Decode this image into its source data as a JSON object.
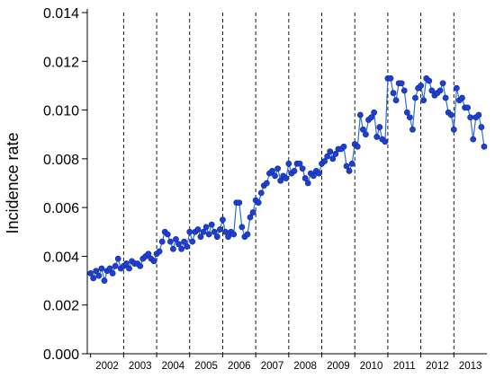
{
  "chart_data": {
    "type": "line",
    "title": "",
    "xlabel": "",
    "ylabel": "Incidence rate",
    "ylim": [
      0,
      0.014
    ],
    "yticks": [
      "0.000",
      "0.002",
      "0.004",
      "0.006",
      "0.008",
      "0.010",
      "0.012",
      "0.014"
    ],
    "years": [
      "2002",
      "2003",
      "2004",
      "2005",
      "2006",
      "2007",
      "2008",
      "2009",
      "2010",
      "2011",
      "2012",
      "2013"
    ],
    "year_dividers": "dashed vertical line at each year boundary",
    "grid": false,
    "legend": "none",
    "colors": {
      "line": "#2f6fd6",
      "marker": "#1f3fd0",
      "marker_edge": "#102a9a"
    },
    "series": [
      {
        "x": [
          2002.0,
          2002.083,
          2002.167,
          2002.25,
          2002.333,
          2002.417,
          2002.5,
          2002.583,
          2002.667,
          2002.75,
          2002.833,
          2002.917,
          2003.0,
          2003.083,
          2003.167,
          2003.25,
          2003.333,
          2003.417,
          2003.5,
          2003.583,
          2003.667,
          2003.75,
          2003.833,
          2003.917,
          2004.0,
          2004.083,
          2004.167,
          2004.25,
          2004.333,
          2004.417,
          2004.5,
          2004.583,
          2004.667,
          2004.75,
          2004.833,
          2004.917,
          2005.0,
          2005.083,
          2005.167,
          2005.25,
          2005.333,
          2005.417,
          2005.5,
          2005.583,
          2005.667,
          2005.75,
          2005.833,
          2005.917,
          2006.0,
          2006.083,
          2006.167,
          2006.25,
          2006.333,
          2006.417,
          2006.5,
          2006.583,
          2006.667,
          2006.75,
          2006.833,
          2006.917,
          2007.0,
          2007.083,
          2007.167,
          2007.25,
          2007.333,
          2007.417,
          2007.5,
          2007.583,
          2007.667,
          2007.75,
          2007.833,
          2007.917,
          2008.0,
          2008.083,
          2008.167,
          2008.25,
          2008.333,
          2008.417,
          2008.5,
          2008.583,
          2008.667,
          2008.75,
          2008.833,
          2008.917,
          2009.0,
          2009.083,
          2009.167,
          2009.25,
          2009.333,
          2009.417,
          2009.5,
          2009.583,
          2009.667,
          2009.75,
          2009.833,
          2009.917,
          2010.0,
          2010.083,
          2010.167,
          2010.25,
          2010.333,
          2010.417,
          2010.5,
          2010.583,
          2010.667,
          2010.75,
          2010.833,
          2010.917,
          2011.0,
          2011.083,
          2011.167,
          2011.25,
          2011.333,
          2011.417,
          2011.5,
          2011.583,
          2011.667,
          2011.75,
          2011.833,
          2011.917,
          2012.0,
          2012.083,
          2012.167,
          2012.25,
          2012.333,
          2012.417,
          2012.5,
          2012.583,
          2012.667,
          2012.75,
          2012.833,
          2012.917,
          2013.0,
          2013.083,
          2013.167,
          2013.25,
          2013.333,
          2013.417,
          2013.5,
          2013.583,
          2013.667,
          2013.75,
          2013.833,
          2013.917
        ],
        "values": [
          0.0033,
          0.0031,
          0.0034,
          0.0032,
          0.0035,
          0.003,
          0.0034,
          0.0035,
          0.0033,
          0.0036,
          0.0039,
          0.0035,
          0.0036,
          0.0037,
          0.0035,
          0.0038,
          0.0037,
          0.0037,
          0.0036,
          0.0039,
          0.004,
          0.0041,
          0.0039,
          0.0038,
          0.0041,
          0.0042,
          0.0046,
          0.005,
          0.0049,
          0.0046,
          0.0043,
          0.0047,
          0.0045,
          0.0043,
          0.0046,
          0.0044,
          0.005,
          0.0046,
          0.005,
          0.0051,
          0.0048,
          0.005,
          0.0052,
          0.0049,
          0.0053,
          0.005,
          0.0048,
          0.0051,
          0.0055,
          0.005,
          0.0048,
          0.005,
          0.0049,
          0.0062,
          0.0062,
          0.0052,
          0.0048,
          0.0049,
          0.0056,
          0.0058,
          0.0063,
          0.0062,
          0.0066,
          0.0069,
          0.007,
          0.0074,
          0.0075,
          0.0073,
          0.0076,
          0.0071,
          0.0073,
          0.0072,
          0.0078,
          0.0074,
          0.0075,
          0.0078,
          0.0078,
          0.0076,
          0.0072,
          0.007,
          0.0074,
          0.0073,
          0.0075,
          0.0074,
          0.0078,
          0.0079,
          0.0081,
          0.0083,
          0.008,
          0.0082,
          0.0084,
          0.0084,
          0.0085,
          0.0077,
          0.0075,
          0.0078,
          0.0086,
          0.0085,
          0.0098,
          0.0092,
          0.009,
          0.0096,
          0.0097,
          0.0099,
          0.0089,
          0.0093,
          0.0088,
          0.0087,
          0.0113,
          0.0113,
          0.0107,
          0.0104,
          0.0111,
          0.0111,
          0.0108,
          0.0099,
          0.0097,
          0.0092,
          0.0105,
          0.0109,
          0.011,
          0.0104,
          0.0113,
          0.0112,
          0.0108,
          0.0106,
          0.0107,
          0.0108,
          0.0111,
          0.0105,
          0.0099,
          0.0098,
          0.0092,
          0.0109,
          0.0104,
          0.0105,
          0.0101,
          0.0101,
          0.0097,
          0.0088,
          0.0097,
          0.0098,
          0.0093,
          0.0085
        ]
      }
    ]
  }
}
